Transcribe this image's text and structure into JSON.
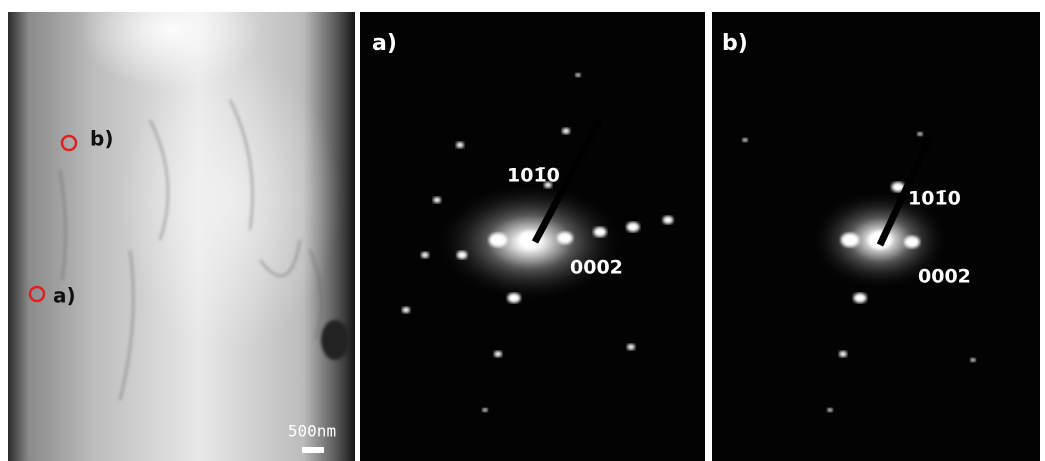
{
  "panels": [
    {
      "markers": [
        {
          "label": "b)"
        },
        {
          "label": "a)"
        }
      ],
      "scale_bar": "500nm"
    },
    {
      "label": "a)",
      "annotations": [
        "101̄0",
        "0002"
      ]
    },
    {
      "label": "b)",
      "annotations": [
        "101̄0",
        "0002"
      ]
    }
  ]
}
